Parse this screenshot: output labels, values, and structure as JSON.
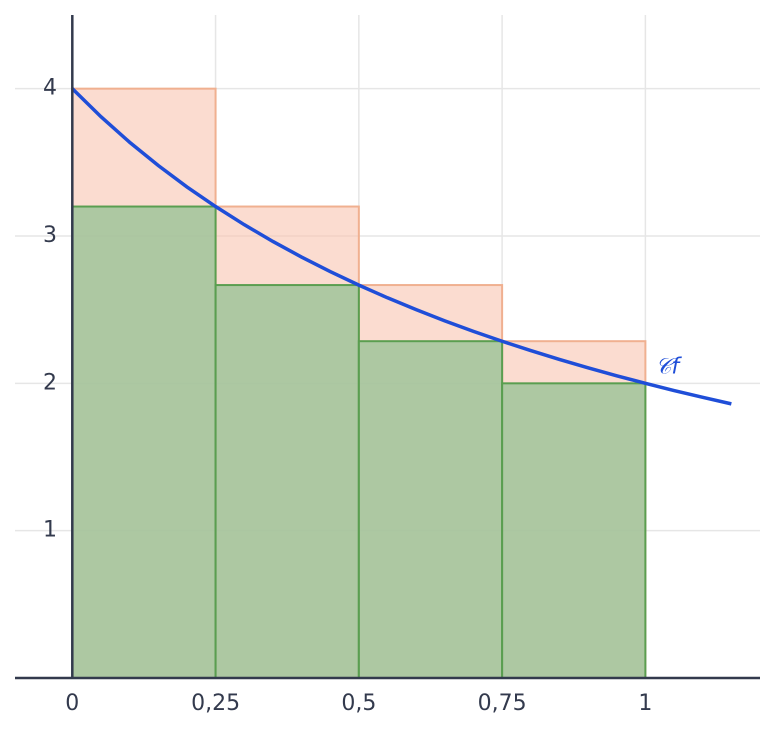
{
  "chart_data": {
    "type": "riemann",
    "bins": [
      0,
      0.25,
      0.5,
      0.75,
      1
    ],
    "upper": {
      "color": "#f9c5b0",
      "edge": "#f0b090",
      "values": [
        4,
        3.2,
        2.667,
        2.286
      ]
    },
    "lower": {
      "color": "#9fc49a",
      "edge": "#5a9e50",
      "values": [
        3.2,
        2.667,
        2.286,
        2
      ]
    },
    "curve": {
      "color": "#1f4ed8",
      "label": "𝒞f",
      "x": [
        0,
        0.05,
        0.1,
        0.15,
        0.2,
        0.25,
        0.3,
        0.35,
        0.4,
        0.45,
        0.5,
        0.55,
        0.6,
        0.65,
        0.7,
        0.75,
        0.8,
        0.85,
        0.9,
        0.95,
        1,
        1.05,
        1.1,
        1.15
      ],
      "values": [
        4,
        3.8095,
        3.6364,
        3.4783,
        3.3333,
        3.2,
        3.0769,
        2.963,
        2.8571,
        2.7586,
        2.6667,
        2.5806,
        2.5,
        2.4242,
        2.3529,
        2.2857,
        2.2222,
        2.1622,
        2.1053,
        2.0513,
        2,
        1.9512,
        1.9048,
        1.8605
      ]
    },
    "xlim": [
      -0.1,
      1.2
    ],
    "ylim": [
      0,
      4.5
    ],
    "xticks": [
      0,
      {
        "value": 0.25,
        "label": "0,25"
      },
      {
        "value": 0.5,
        "label": "0,5"
      },
      {
        "value": 0.75,
        "label": "0,75"
      },
      1
    ],
    "yticks": [
      1,
      2,
      3,
      4
    ],
    "grid": true
  }
}
